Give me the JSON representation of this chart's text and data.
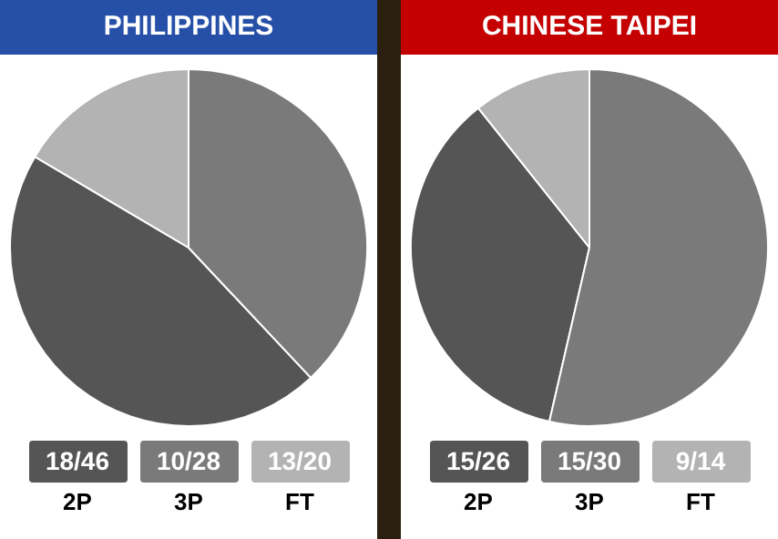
{
  "chart_data": [
    {
      "type": "pie",
      "title": "PHILIPPINES",
      "categories": [
        "2P",
        "3P",
        "FT"
      ],
      "values": [
        45.5,
        38,
        16.5
      ],
      "colors": [
        "#555555",
        "#7a7a7a",
        "#b3b3b3"
      ],
      "value_labels": [
        "18/46",
        "10/28",
        "13/20"
      ],
      "legend": "bottom"
    },
    {
      "type": "pie",
      "title": "CHINESE TAIPEI",
      "categories": [
        "2P",
        "3P",
        "FT"
      ],
      "values": [
        35.7,
        53.6,
        10.7
      ],
      "colors": [
        "#555555",
        "#7a7a7a",
        "#b3b3b3"
      ],
      "value_labels": [
        "15/26",
        "15/30",
        "9/14"
      ],
      "legend": "bottom"
    }
  ]
}
